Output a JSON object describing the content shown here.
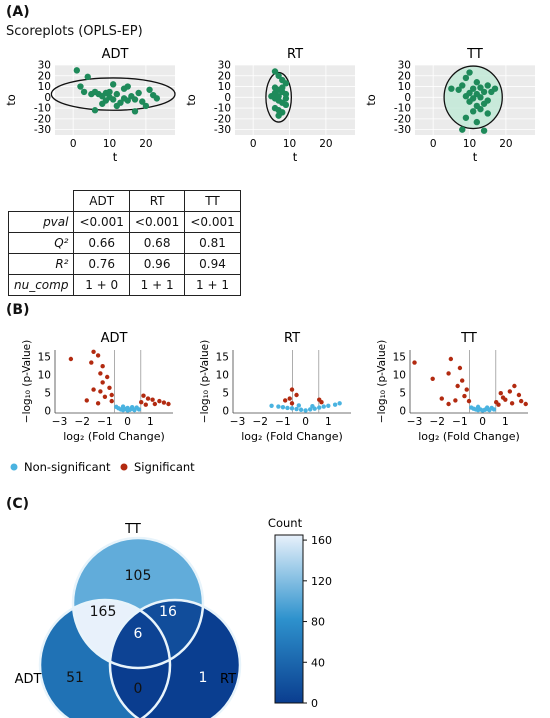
{
  "panel_a": {
    "label": "(A)",
    "subtitle": "Scoreplots (OPLS-EP)"
  },
  "panel_b": {
    "label": "(B)"
  },
  "panel_c": {
    "label": "(C)"
  },
  "stats_table": {
    "columns": [
      "ADT",
      "RT",
      "TT"
    ],
    "rows": [
      {
        "label": "pval",
        "values": [
          "<0.001",
          "<0.001",
          "<0.001"
        ]
      },
      {
        "label": "Q²",
        "values": [
          "0.66",
          "0.68",
          "0.81"
        ]
      },
      {
        "label": "R²",
        "values": [
          "0.76",
          "0.96",
          "0.94"
        ]
      },
      {
        "label": "nu_comp",
        "values": [
          "1 + 0",
          "1 + 1",
          "1 + 1"
        ]
      }
    ]
  },
  "colors": {
    "score_point": "#1e8a5a",
    "panel_bg": "#ebebeb",
    "nonsig": "#4ab3e0",
    "sig": "#b22a10",
    "venn_cmap_low": "#0a3d8f",
    "venn_cmap_high": "#e8f1fb"
  },
  "chart_data": [
    {
      "type": "scatter",
      "title": "ADT",
      "xlabel": "t",
      "ylabel": "to",
      "xlim": [
        -5,
        28
      ],
      "ylim": [
        -35,
        30
      ],
      "xticks": [
        0,
        10,
        20
      ],
      "yticks": [
        -30,
        -20,
        -10,
        0,
        10,
        20,
        30
      ],
      "grid": true,
      "ellipse": {
        "cx": 11,
        "cy": 3,
        "rx": 17,
        "ry": 15
      },
      "points": [
        [
          1,
          25
        ],
        [
          4,
          19
        ],
        [
          2,
          10
        ],
        [
          3,
          5
        ],
        [
          5,
          3
        ],
        [
          6,
          5
        ],
        [
          7,
          3
        ],
        [
          8,
          1
        ],
        [
          9,
          4
        ],
        [
          9,
          -3
        ],
        [
          10,
          5
        ],
        [
          10,
          0
        ],
        [
          11,
          -2
        ],
        [
          12,
          3
        ],
        [
          13,
          -5
        ],
        [
          14,
          -1
        ],
        [
          15,
          -3
        ],
        [
          16,
          1
        ],
        [
          17,
          -2
        ],
        [
          18,
          4
        ],
        [
          19,
          -4
        ],
        [
          20,
          -8
        ],
        [
          21,
          7
        ],
        [
          22,
          2
        ],
        [
          23,
          -1
        ],
        [
          8,
          -6
        ],
        [
          12,
          -8
        ],
        [
          17,
          -13
        ],
        [
          6,
          -12
        ],
        [
          14,
          8
        ],
        [
          11,
          12
        ],
        [
          15,
          10
        ]
      ]
    },
    {
      "type": "scatter",
      "title": "RT",
      "xlabel": "t",
      "ylabel": "to",
      "xlim": [
        -5,
        28
      ],
      "ylim": [
        -35,
        30
      ],
      "xticks": [
        0,
        10,
        20
      ],
      "yticks": [
        -30,
        -20,
        -10,
        0,
        10,
        20,
        30
      ],
      "grid": true,
      "ellipse": {
        "cx": 7,
        "cy": 0,
        "rx": 3.5,
        "ry": 23
      },
      "points": [
        [
          6,
          24
        ],
        [
          7,
          20
        ],
        [
          8,
          16
        ],
        [
          9,
          13
        ],
        [
          6,
          9
        ],
        [
          7,
          7
        ],
        [
          8,
          5
        ],
        [
          9,
          3
        ],
        [
          5,
          1
        ],
        [
          6,
          -1
        ],
        [
          7,
          -3
        ],
        [
          8,
          -5
        ],
        [
          9,
          -7
        ],
        [
          6,
          -10
        ],
        [
          7,
          -12
        ],
        [
          8,
          -14
        ],
        [
          7,
          -17
        ],
        [
          6,
          4
        ],
        [
          8,
          9
        ],
        [
          9,
          -1
        ],
        [
          7,
          1
        ]
      ]
    },
    {
      "type": "scatter",
      "title": "TT",
      "xlabel": "t",
      "ylabel": "to",
      "xlim": [
        -5,
        28
      ],
      "ylim": [
        -35,
        30
      ],
      "xticks": [
        0,
        10,
        20
      ],
      "yticks": [
        -30,
        -20,
        -10,
        0,
        10,
        20,
        30
      ],
      "grid": true,
      "ellipse": {
        "cx": 11,
        "cy": 0,
        "rx": 8,
        "ry": 29
      },
      "points": [
        [
          10,
          23
        ],
        [
          9,
          18
        ],
        [
          12,
          14
        ],
        [
          8,
          11
        ],
        [
          13,
          9
        ],
        [
          11,
          8
        ],
        [
          14,
          5
        ],
        [
          10,
          4
        ],
        [
          12,
          3
        ],
        [
          9,
          1
        ],
        [
          13,
          0
        ],
        [
          11,
          -1
        ],
        [
          15,
          -3
        ],
        [
          10,
          -4
        ],
        [
          14,
          -6
        ],
        [
          12,
          -8
        ],
        [
          13,
          -11
        ],
        [
          11,
          -13
        ],
        [
          15,
          -15
        ],
        [
          9,
          -19
        ],
        [
          12,
          -23
        ],
        [
          8,
          -30
        ],
        [
          14,
          -31
        ],
        [
          16,
          5
        ],
        [
          7,
          7
        ],
        [
          15,
          11
        ],
        [
          5,
          8
        ],
        [
          17,
          8
        ]
      ]
    },
    {
      "type": "scatter",
      "title": "ADT",
      "xlabel": "log₂ (Fold Change)",
      "ylabel": "−log₁₀ (p-Value)",
      "xlim": [
        -3.2,
        2.0
      ],
      "ylim": [
        -0.5,
        17
      ],
      "xticks": [
        -3,
        -2,
        -1,
        0,
        1
      ],
      "yticks": [
        0,
        5,
        10,
        15
      ],
      "vlines": [
        -0.58,
        0.58
      ],
      "significant": [
        [
          -1.5,
          16.5
        ],
        [
          -1.3,
          15.5
        ],
        [
          -2.5,
          14.5
        ],
        [
          -1.6,
          13.5
        ],
        [
          -1.1,
          12.5
        ],
        [
          -1.2,
          10.5
        ],
        [
          -0.9,
          9.5
        ],
        [
          -1.1,
          8.0
        ],
        [
          -0.8,
          6.5
        ],
        [
          -1.5,
          6.0
        ],
        [
          -1.2,
          5.5
        ],
        [
          -0.7,
          4.5
        ],
        [
          0.7,
          4.3
        ],
        [
          -1.0,
          4.0
        ],
        [
          0.9,
          3.5
        ],
        [
          1.1,
          3.2
        ],
        [
          1.4,
          2.8
        ],
        [
          1.6,
          2.4
        ],
        [
          -1.8,
          3.0
        ],
        [
          0.6,
          2.5
        ],
        [
          -0.7,
          2.8
        ],
        [
          1.2,
          2.0
        ],
        [
          0.8,
          1.8
        ],
        [
          -1.3,
          2.2
        ],
        [
          1.8,
          2.0
        ]
      ],
      "nonsignificant": [
        [
          -0.5,
          1.2
        ],
        [
          -0.4,
          0.8
        ],
        [
          -0.3,
          0.5
        ],
        [
          -0.2,
          0.3
        ],
        [
          -0.1,
          0.6
        ],
        [
          0,
          0.2
        ],
        [
          0.1,
          0.4
        ],
        [
          0.2,
          0.7
        ],
        [
          0.3,
          0.3
        ],
        [
          0.4,
          1.0
        ],
        [
          0.5,
          0.5
        ],
        [
          -0.2,
          1.3
        ],
        [
          0.2,
          1.1
        ],
        [
          0,
          0.9
        ]
      ]
    },
    {
      "type": "scatter",
      "title": "RT",
      "xlabel": "log₂ (Fold Change)",
      "ylabel": "−log₁₀ (p-Value)",
      "xlim": [
        -3.2,
        2.0
      ],
      "ylim": [
        -0.5,
        17
      ],
      "xticks": [
        -3,
        -2,
        -1,
        0,
        1
      ],
      "yticks": [
        0,
        5,
        10,
        15
      ],
      "vlines": [
        -0.58,
        0.58
      ],
      "significant": [
        [
          -0.6,
          6.0
        ],
        [
          -0.4,
          4.5
        ],
        [
          -0.7,
          3.5
        ],
        [
          0.6,
          3.2
        ],
        [
          -0.9,
          3.0
        ],
        [
          0.7,
          2.5
        ],
        [
          -0.6,
          2.2
        ]
      ],
      "nonsignificant": [
        [
          -1.5,
          1.5
        ],
        [
          -1.2,
          1.3
        ],
        [
          -1.0,
          1.1
        ],
        [
          -0.8,
          0.9
        ],
        [
          -0.6,
          0.8
        ],
        [
          -0.4,
          0.6
        ],
        [
          -0.2,
          0.4
        ],
        [
          0,
          0.2
        ],
        [
          0.2,
          0.5
        ],
        [
          0.4,
          0.7
        ],
        [
          0.6,
          1.0
        ],
        [
          0.8,
          1.3
        ],
        [
          1.0,
          1.5
        ],
        [
          1.3,
          1.8
        ],
        [
          -0.3,
          1.6
        ],
        [
          0.3,
          1.4
        ],
        [
          1.5,
          2.2
        ]
      ]
    },
    {
      "type": "scatter",
      "title": "TT",
      "xlabel": "log₂ (Fold Change)",
      "ylabel": "−log₁₀ (p-Value)",
      "xlim": [
        -3.2,
        2.0
      ],
      "ylim": [
        -0.5,
        17
      ],
      "xticks": [
        -3,
        -2,
        -1,
        0,
        1
      ],
      "yticks": [
        0,
        5,
        10,
        15
      ],
      "vlines": [
        -0.58,
        0.58
      ],
      "significant": [
        [
          -3.0,
          13.5
        ],
        [
          -1.4,
          14.5
        ],
        [
          -1.0,
          12.0
        ],
        [
          -1.5,
          10.5
        ],
        [
          -2.2,
          9.0
        ],
        [
          -0.9,
          8.5
        ],
        [
          -1.1,
          7.0
        ],
        [
          -0.7,
          6.0
        ],
        [
          1.4,
          7.0
        ],
        [
          1.2,
          5.5
        ],
        [
          0.8,
          5.0
        ],
        [
          1.6,
          4.5
        ],
        [
          -0.8,
          4.2
        ],
        [
          0.9,
          3.8
        ],
        [
          -1.8,
          3.5
        ],
        [
          1.0,
          3.2
        ],
        [
          1.7,
          2.8
        ],
        [
          -1.2,
          3.0
        ],
        [
          0.6,
          2.5
        ],
        [
          -0.6,
          2.8
        ],
        [
          1.3,
          2.2
        ],
        [
          -1.5,
          2.0
        ],
        [
          1.9,
          2.0
        ],
        [
          0.7,
          1.8
        ]
      ],
      "nonsignificant": [
        [
          -0.5,
          1.0
        ],
        [
          -0.4,
          0.7
        ],
        [
          -0.3,
          0.5
        ],
        [
          -0.2,
          0.3
        ],
        [
          -0.1,
          0.5
        ],
        [
          0,
          0.2
        ],
        [
          0.1,
          0.4
        ],
        [
          0.2,
          0.6
        ],
        [
          0.3,
          0.3
        ],
        [
          0.4,
          0.9
        ],
        [
          0.5,
          0.5
        ],
        [
          -0.2,
          1.2
        ],
        [
          0.2,
          1.0
        ]
      ]
    },
    {
      "type": "venn",
      "sets": [
        "TT",
        "ADT",
        "RT"
      ],
      "regions": [
        {
          "sets": [
            "TT"
          ],
          "value": 105
        },
        {
          "sets": [
            "ADT",
            "TT"
          ],
          "value": 165
        },
        {
          "sets": [
            "TT",
            "RT"
          ],
          "value": 16
        },
        {
          "sets": [
            "ADT",
            "TT",
            "RT"
          ],
          "value": 6
        },
        {
          "sets": [
            "ADT"
          ],
          "value": 51
        },
        {
          "sets": [
            "ADT",
            "RT"
          ],
          "value": 0
        },
        {
          "sets": [
            "RT"
          ],
          "value": 1
        }
      ],
      "colorbar": {
        "title": "Count",
        "min": 0,
        "max": 165,
        "ticks": [
          0,
          40,
          80,
          120,
          160
        ]
      }
    }
  ],
  "legend_b": {
    "items": [
      {
        "label": "Non-significant",
        "color": "#4ab3e0"
      },
      {
        "label": "Significant",
        "color": "#b22a10"
      }
    ]
  }
}
